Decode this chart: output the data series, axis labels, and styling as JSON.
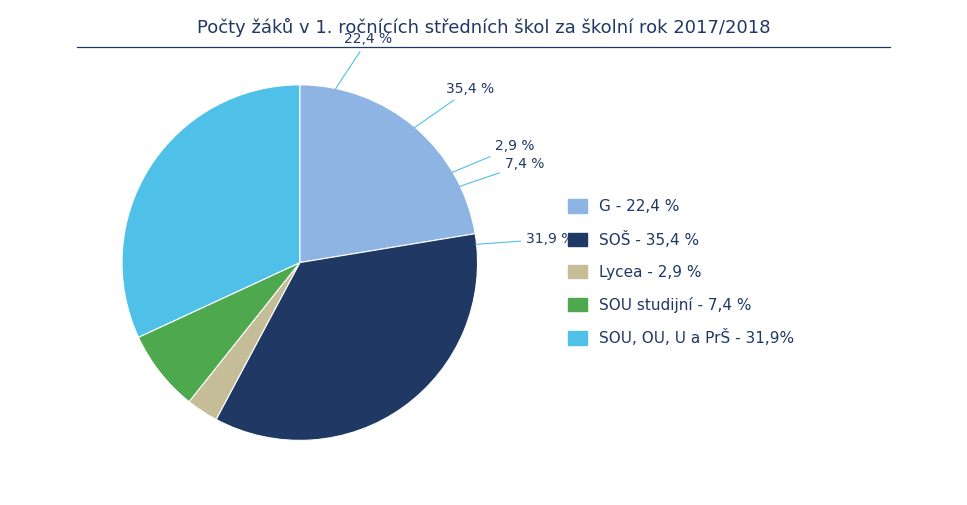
{
  "title": "Počty žáků v 1. ročnících středních škol za školní rok 2017/2018",
  "slices": [
    22.4,
    35.4,
    2.9,
    7.4,
    31.9
  ],
  "labels": [
    "G - 22,4 %",
    "SOŠ - 35,4 %",
    "Lycea - 2,9 %",
    "SOU studijní - 7,4 %",
    "SOU, OU, U a PrŠ - 31,9%"
  ],
  "colors": [
    "#8eb4e3",
    "#1f3864",
    "#c4bd97",
    "#4ea84e",
    "#4fc1e9"
  ],
  "pct_labels": [
    "22,4 %",
    "35,4 %",
    "2,9 %",
    "7,4 %",
    "31,9 %"
  ],
  "startangle": 90,
  "background_color": "#ffffff",
  "title_color": "#1f3864",
  "title_fontsize": 13,
  "legend_fontsize": 11
}
